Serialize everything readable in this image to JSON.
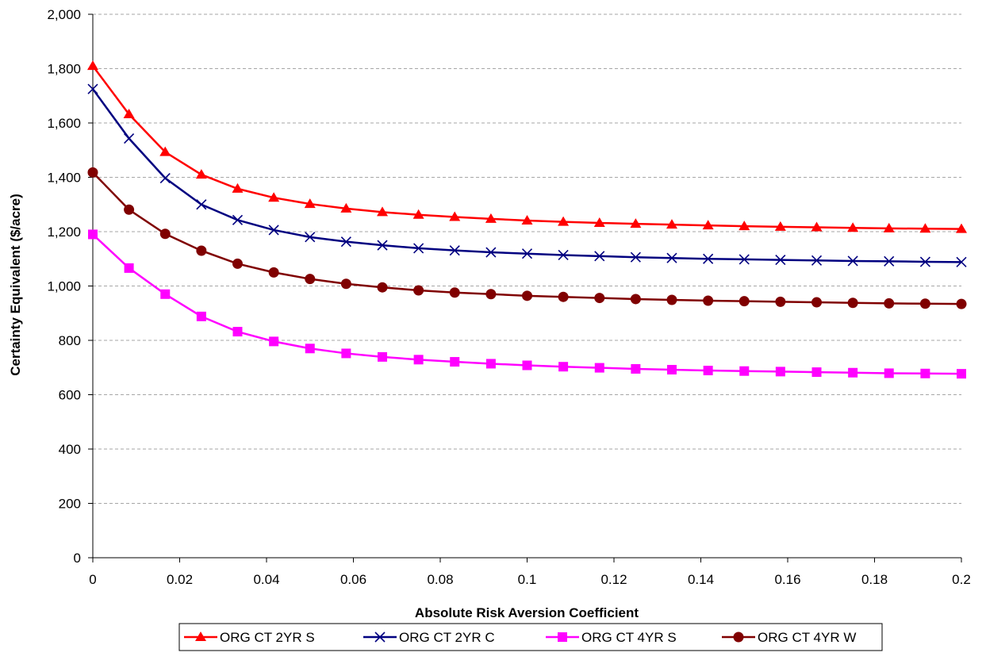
{
  "chart_data": {
    "type": "line",
    "title": "",
    "xlabel": "Absolute Risk Aversion Coefficient",
    "ylabel": "Certainty Equivalent ($/acre)",
    "xlim": [
      0,
      0.2
    ],
    "ylim": [
      0,
      2000
    ],
    "x_ticks": [
      "0",
      "0.02",
      "0.04",
      "0.06",
      "0.08",
      "0.1",
      "0.12",
      "0.14",
      "0.16",
      "0.18",
      "0.2"
    ],
    "y_ticks": [
      "0",
      "200",
      "400",
      "600",
      "800",
      "1,000",
      "1,200",
      "1,400",
      "1,600",
      "1,800",
      "2,000"
    ],
    "y_tick_values": [
      0,
      200,
      400,
      600,
      800,
      1000,
      1200,
      1400,
      1600,
      1800,
      2000
    ],
    "x_tick_values": [
      0,
      0.02,
      0.04,
      0.06,
      0.08,
      0.1,
      0.12,
      0.14,
      0.16,
      0.18,
      0.2
    ],
    "grid": "horizontal dashed",
    "legend_position": "bottom",
    "x": [
      0,
      0.00833,
      0.01667,
      0.025,
      0.03333,
      0.04167,
      0.05,
      0.05833,
      0.06667,
      0.075,
      0.08333,
      0.09167,
      0.1,
      0.10833,
      0.11667,
      0.125,
      0.13333,
      0.14167,
      0.15,
      0.15833,
      0.16667,
      0.175,
      0.18333,
      0.19167,
      0.2
    ],
    "series": [
      {
        "name": "ORG CT 2YR S",
        "color": "#ff0000",
        "marker": "triangle",
        "values": [
          1810,
          1632,
          1493,
          1410,
          1358,
          1325,
          1302,
          1285,
          1272,
          1262,
          1254,
          1247,
          1241,
          1236,
          1232,
          1229,
          1226,
          1223,
          1220,
          1218,
          1216,
          1214,
          1212,
          1211,
          1210
        ]
      },
      {
        "name": "ORG CT 2YR C",
        "color": "#000080",
        "marker": "cross",
        "values": [
          1725,
          1543,
          1397,
          1300,
          1243,
          1206,
          1180,
          1163,
          1150,
          1139,
          1131,
          1124,
          1119,
          1114,
          1110,
          1106,
          1103,
          1100,
          1098,
          1096,
          1094,
          1092,
          1091,
          1089,
          1088
        ]
      },
      {
        "name": "ORG CT 4YR S",
        "color": "#ff00ff",
        "marker": "square",
        "values": [
          1190,
          1066,
          970,
          888,
          832,
          796,
          770,
          752,
          739,
          729,
          721,
          714,
          708,
          703,
          699,
          695,
          692,
          689,
          687,
          685,
          683,
          681,
          679,
          678,
          677
        ]
      },
      {
        "name": "ORG CT 4YR W",
        "color": "#800000",
        "marker": "circle",
        "values": [
          1418,
          1281,
          1192,
          1130,
          1082,
          1050,
          1026,
          1008,
          995,
          984,
          976,
          970,
          964,
          960,
          956,
          952,
          949,
          946,
          944,
          942,
          940,
          938,
          936,
          935,
          934
        ]
      }
    ]
  }
}
